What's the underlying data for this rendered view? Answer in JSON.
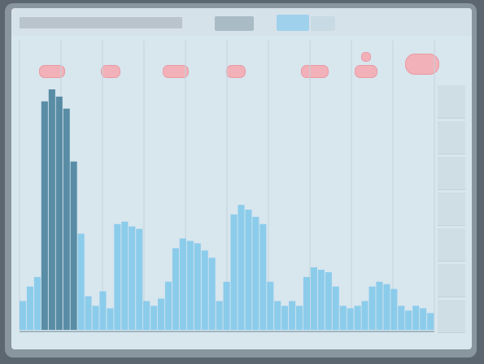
{
  "window": {
    "title": "",
    "corner_badge_color": "#c9475a"
  },
  "toolbar": {
    "text": "",
    "tabs": [
      "",
      "",
      ""
    ]
  },
  "markers": {
    "color": "#f2b1b8",
    "labels": [
      "",
      "",
      "",
      "",
      "",
      "",
      "",
      ""
    ]
  },
  "chart_data": {
    "type": "bar",
    "series": [
      {
        "values": [
          0.12,
          0.18,
          0.22,
          0.95,
          1.0,
          0.97,
          0.92,
          0.7,
          0.4,
          0.14,
          0.1,
          0.16,
          0.09,
          0.44,
          0.45,
          0.43,
          0.42,
          0.12,
          0.1,
          0.13,
          0.2,
          0.34,
          0.38,
          0.37,
          0.36,
          0.33,
          0.3,
          0.12,
          0.2,
          0.48,
          0.52,
          0.5,
          0.47,
          0.44,
          0.2,
          0.12,
          0.1,
          0.12,
          0.1,
          0.22,
          0.26,
          0.25,
          0.24,
          0.18,
          0.1,
          0.09,
          0.1,
          0.12,
          0.18,
          0.2,
          0.19,
          0.17,
          0.1,
          0.08,
          0.1,
          0.09,
          0.07
        ]
      }
    ],
    "colors": {
      "bar_light": "#7fc7ea",
      "bar_dark": "#2f6f8c",
      "gridline": "#c3d3dc"
    },
    "grid": true
  },
  "value_column": {
    "cells": [
      "",
      "",
      "",
      "",
      "",
      "",
      ""
    ]
  }
}
